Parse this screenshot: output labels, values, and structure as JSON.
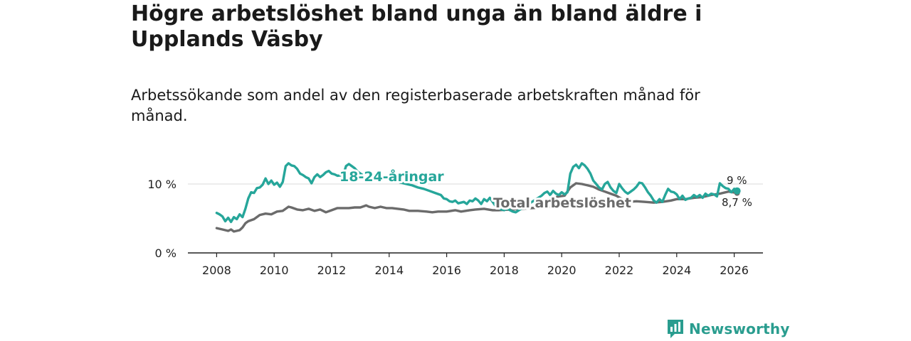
{
  "title": "Högre arbetslöshet bland unga än bland äldre i Upplands Väsby",
  "subtitle": "Arbetssökande som andel av den registerbaserade arbetskraften månad för månad.",
  "brand": {
    "name": "Newsworthy",
    "icon": "newsworthy-logo-icon",
    "color": "#2a9d8f"
  },
  "chart_data": {
    "type": "line",
    "xlim": [
      2007.0,
      2027.0
    ],
    "ylim": [
      0,
      13.5
    ],
    "x_ticks": [
      {
        "value": 2008,
        "label": "2008"
      },
      {
        "value": 2010,
        "label": "2010"
      },
      {
        "value": 2012,
        "label": "2012"
      },
      {
        "value": 2014,
        "label": "2014"
      },
      {
        "value": 2016,
        "label": "2016"
      },
      {
        "value": 2018,
        "label": "2018"
      },
      {
        "value": 2020,
        "label": "2020"
      },
      {
        "value": 2022,
        "label": "2022"
      },
      {
        "value": 2024,
        "label": "2024"
      },
      {
        "value": 2026,
        "label": "2026"
      }
    ],
    "y_ticks": [
      {
        "value": 0,
        "label": "0 %"
      },
      {
        "value": 10,
        "label": "10 %"
      }
    ],
    "grid": "horizontal",
    "series": [
      {
        "name": "18-24-åringar",
        "color": "#26a69a",
        "end_label": "9 %",
        "points": [
          [
            2008.0,
            5.8
          ],
          [
            2008.1,
            5.6
          ],
          [
            2008.2,
            5.3
          ],
          [
            2008.3,
            4.6
          ],
          [
            2008.4,
            5.1
          ],
          [
            2008.5,
            4.5
          ],
          [
            2008.6,
            5.2
          ],
          [
            2008.7,
            4.9
          ],
          [
            2008.8,
            5.6
          ],
          [
            2008.9,
            5.2
          ],
          [
            2009.0,
            6.4
          ],
          [
            2009.1,
            7.9
          ],
          [
            2009.2,
            8.8
          ],
          [
            2009.3,
            8.7
          ],
          [
            2009.4,
            9.4
          ],
          [
            2009.5,
            9.5
          ],
          [
            2009.6,
            9.9
          ],
          [
            2009.7,
            10.8
          ],
          [
            2009.8,
            10.0
          ],
          [
            2009.9,
            10.5
          ],
          [
            2010.0,
            9.9
          ],
          [
            2010.1,
            10.2
          ],
          [
            2010.2,
            9.6
          ],
          [
            2010.3,
            10.3
          ],
          [
            2010.4,
            12.6
          ],
          [
            2010.5,
            13.0
          ],
          [
            2010.6,
            12.7
          ],
          [
            2010.7,
            12.6
          ],
          [
            2010.8,
            12.2
          ],
          [
            2010.9,
            11.5
          ],
          [
            2011.0,
            11.3
          ],
          [
            2011.1,
            11.0
          ],
          [
            2011.2,
            10.8
          ],
          [
            2011.3,
            10.1
          ],
          [
            2011.4,
            11.0
          ],
          [
            2011.5,
            11.4
          ],
          [
            2011.6,
            11.0
          ],
          [
            2011.7,
            11.3
          ],
          [
            2011.8,
            11.7
          ],
          [
            2011.9,
            11.9
          ],
          [
            2012.0,
            11.5
          ],
          [
            2012.1,
            11.4
          ],
          [
            2012.2,
            11.2
          ],
          [
            2012.4,
            11.3
          ],
          [
            2012.5,
            12.6
          ],
          [
            2012.6,
            12.9
          ],
          [
            2012.7,
            12.6
          ],
          [
            2012.8,
            12.3
          ],
          [
            2012.9,
            11.8
          ],
          [
            2013.0,
            11.5
          ],
          [
            2013.2,
            11.0
          ],
          [
            2013.4,
            10.8
          ],
          [
            2013.6,
            10.5
          ],
          [
            2013.8,
            11.2
          ],
          [
            2014.0,
            10.8
          ],
          [
            2014.2,
            10.5
          ],
          [
            2014.4,
            10.2
          ],
          [
            2014.6,
            10.0
          ],
          [
            2014.8,
            9.8
          ],
          [
            2015.0,
            9.5
          ],
          [
            2015.2,
            9.3
          ],
          [
            2015.4,
            9.0
          ],
          [
            2015.6,
            8.7
          ],
          [
            2015.8,
            8.4
          ],
          [
            2015.9,
            7.9
          ],
          [
            2016.0,
            7.8
          ],
          [
            2016.1,
            7.5
          ],
          [
            2016.2,
            7.4
          ],
          [
            2016.3,
            7.6
          ],
          [
            2016.4,
            7.2
          ],
          [
            2016.5,
            7.3
          ],
          [
            2016.6,
            7.4
          ],
          [
            2016.7,
            7.1
          ],
          [
            2016.8,
            7.6
          ],
          [
            2016.9,
            7.5
          ],
          [
            2017.0,
            7.9
          ],
          [
            2017.1,
            7.6
          ],
          [
            2017.2,
            7.1
          ],
          [
            2017.3,
            7.8
          ],
          [
            2017.4,
            7.5
          ],
          [
            2017.5,
            8.0
          ],
          [
            2017.6,
            7.4
          ],
          [
            2017.7,
            6.8
          ],
          [
            2017.8,
            6.5
          ],
          [
            2017.9,
            6.3
          ],
          [
            2018.0,
            6.2
          ],
          [
            2018.1,
            6.4
          ],
          [
            2018.2,
            6.2
          ],
          [
            2018.3,
            6.0
          ],
          [
            2018.4,
            5.9
          ],
          [
            2019.3,
            8.3
          ],
          [
            2019.4,
            8.7
          ],
          [
            2019.5,
            8.9
          ],
          [
            2019.6,
            8.4
          ],
          [
            2019.7,
            9.0
          ],
          [
            2019.8,
            8.6
          ],
          [
            2019.9,
            8.4
          ],
          [
            2020.0,
            8.8
          ],
          [
            2020.1,
            8.5
          ],
          [
            2020.2,
            8.8
          ],
          [
            2020.3,
            11.5
          ],
          [
            2020.4,
            12.5
          ],
          [
            2020.5,
            12.8
          ],
          [
            2020.6,
            12.3
          ],
          [
            2020.7,
            13.0
          ],
          [
            2020.8,
            12.7
          ],
          [
            2020.9,
            12.2
          ],
          [
            2021.0,
            11.5
          ],
          [
            2021.1,
            10.5
          ],
          [
            2021.2,
            10.0
          ],
          [
            2021.3,
            9.5
          ],
          [
            2021.4,
            9.2
          ],
          [
            2021.5,
            10.0
          ],
          [
            2021.6,
            10.3
          ],
          [
            2021.7,
            9.5
          ],
          [
            2021.8,
            9.0
          ],
          [
            2021.9,
            8.7
          ],
          [
            2022.0,
            10.0
          ],
          [
            2022.1,
            9.4
          ],
          [
            2022.2,
            8.9
          ],
          [
            2022.3,
            8.6
          ],
          [
            2022.4,
            8.9
          ],
          [
            2022.5,
            9.2
          ],
          [
            2022.6,
            9.6
          ],
          [
            2022.7,
            10.2
          ],
          [
            2022.8,
            10.1
          ],
          [
            2022.9,
            9.5
          ],
          [
            2023.0,
            8.8
          ],
          [
            2023.1,
            8.3
          ],
          [
            2023.2,
            7.6
          ],
          [
            2023.3,
            7.3
          ],
          [
            2023.4,
            7.8
          ],
          [
            2023.5,
            7.4
          ],
          [
            2023.6,
            8.4
          ],
          [
            2023.7,
            9.3
          ],
          [
            2023.8,
            8.9
          ],
          [
            2023.9,
            8.8
          ],
          [
            2024.0,
            8.5
          ],
          [
            2024.1,
            7.8
          ],
          [
            2024.2,
            8.3
          ],
          [
            2024.3,
            7.7
          ],
          [
            2024.4,
            7.9
          ],
          [
            2024.5,
            8.0
          ],
          [
            2024.6,
            8.4
          ],
          [
            2024.7,
            8.1
          ],
          [
            2024.8,
            8.4
          ],
          [
            2024.9,
            8.0
          ],
          [
            2025.0,
            8.6
          ],
          [
            2025.1,
            8.3
          ],
          [
            2025.2,
            8.6
          ],
          [
            2025.3,
            8.5
          ],
          [
            2025.4,
            8.2
          ],
          [
            2025.5,
            10.1
          ],
          [
            2025.6,
            9.7
          ],
          [
            2025.7,
            9.4
          ],
          [
            2025.8,
            9.3
          ],
          [
            2025.9,
            8.8
          ],
          [
            2026.0,
            9.3
          ],
          [
            2026.1,
            9.0
          ]
        ]
      },
      {
        "name": "Total arbetslöshet",
        "color": "#6b6b6b",
        "end_label": "8,7 %",
        "points": [
          [
            2008.0,
            3.6
          ],
          [
            2008.2,
            3.4
          ],
          [
            2008.4,
            3.2
          ],
          [
            2008.5,
            3.4
          ],
          [
            2008.6,
            3.1
          ],
          [
            2008.8,
            3.3
          ],
          [
            2008.9,
            3.7
          ],
          [
            2009.0,
            4.3
          ],
          [
            2009.1,
            4.6
          ],
          [
            2009.3,
            4.9
          ],
          [
            2009.5,
            5.5
          ],
          [
            2009.7,
            5.7
          ],
          [
            2009.9,
            5.6
          ],
          [
            2010.1,
            6.0
          ],
          [
            2010.3,
            6.1
          ],
          [
            2010.5,
            6.7
          ],
          [
            2010.6,
            6.6
          ],
          [
            2010.8,
            6.3
          ],
          [
            2011.0,
            6.2
          ],
          [
            2011.2,
            6.4
          ],
          [
            2011.4,
            6.1
          ],
          [
            2011.5,
            6.2
          ],
          [
            2011.6,
            6.3
          ],
          [
            2011.8,
            5.9
          ],
          [
            2012.0,
            6.2
          ],
          [
            2012.2,
            6.5
          ],
          [
            2012.4,
            6.5
          ],
          [
            2012.6,
            6.5
          ],
          [
            2012.8,
            6.6
          ],
          [
            2013.0,
            6.6
          ],
          [
            2013.2,
            6.9
          ],
          [
            2013.3,
            6.7
          ],
          [
            2013.5,
            6.5
          ],
          [
            2013.7,
            6.7
          ],
          [
            2013.9,
            6.5
          ],
          [
            2014.1,
            6.5
          ],
          [
            2014.3,
            6.4
          ],
          [
            2014.5,
            6.3
          ],
          [
            2014.7,
            6.1
          ],
          [
            2015.0,
            6.1
          ],
          [
            2015.3,
            6.0
          ],
          [
            2015.5,
            5.9
          ],
          [
            2015.7,
            6.0
          ],
          [
            2016.0,
            6.0
          ],
          [
            2016.3,
            6.2
          ],
          [
            2016.5,
            6.0
          ],
          [
            2016.8,
            6.2
          ],
          [
            2017.0,
            6.3
          ],
          [
            2017.3,
            6.4
          ],
          [
            2017.6,
            6.2
          ],
          [
            2017.8,
            6.2
          ],
          [
            2022.3,
            7.4
          ],
          [
            2022.6,
            7.5
          ],
          [
            2022.9,
            7.4
          ],
          [
            2023.2,
            7.3
          ],
          [
            2023.5,
            7.4
          ],
          [
            2023.8,
            7.6
          ],
          [
            2024.0,
            7.8
          ],
          [
            2024.3,
            7.8
          ],
          [
            2024.6,
            8.0
          ],
          [
            2024.9,
            8.1
          ],
          [
            2025.2,
            8.4
          ],
          [
            2025.5,
            8.6
          ],
          [
            2025.8,
            8.9
          ],
          [
            2026.1,
            8.7
          ]
        ],
        "hidden_gap_points": [
          [
            2019.7,
            8.0
          ],
          [
            2019.9,
            8.2
          ],
          [
            2020.1,
            8.3
          ],
          [
            2020.3,
            9.5
          ],
          [
            2020.5,
            10.1
          ],
          [
            2020.7,
            10.0
          ],
          [
            2020.9,
            9.8
          ],
          [
            2021.1,
            9.6
          ],
          [
            2021.3,
            9.2
          ],
          [
            2021.5,
            8.9
          ],
          [
            2021.7,
            8.6
          ],
          [
            2021.9,
            8.3
          ],
          [
            2022.1,
            7.8
          ]
        ]
      }
    ],
    "series_labels": {
      "youth": "18-24-åringar",
      "total": "Total arbetslöshet"
    }
  }
}
